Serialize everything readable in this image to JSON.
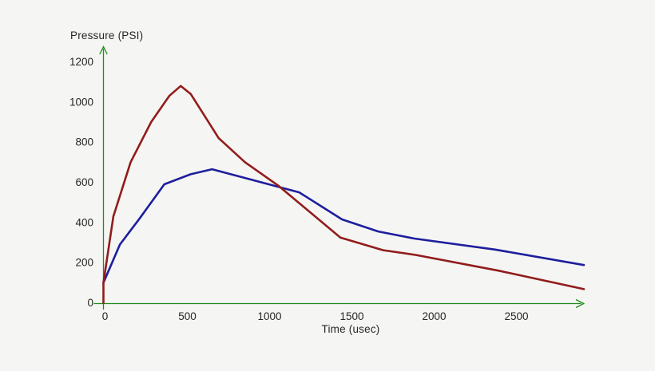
{
  "figure": {
    "background": "#f5f5f3",
    "axis_color": "#1f8b1f",
    "text_color": "#262626"
  },
  "chart_data": {
    "type": "line",
    "title": "",
    "ylabel": "Pressure (PSI)",
    "xlabel": "Time (usec)",
    "x_ticks": [
      0,
      500,
      1000,
      1500,
      2000,
      2500
    ],
    "y_ticks": [
      0,
      200,
      400,
      600,
      800,
      1000,
      1200
    ],
    "xlim": [
      0,
      2920
    ],
    "ylim": [
      0,
      1270
    ],
    "grid": false,
    "legend": "none",
    "series": [
      {
        "name": "blue-pressure-curve",
        "color": "#1e1e9e",
        "points": [
          [
            0,
            100
          ],
          [
            100,
            290
          ],
          [
            220,
            420
          ],
          [
            370,
            590
          ],
          [
            530,
            640
          ],
          [
            660,
            665
          ],
          [
            1190,
            550
          ],
          [
            1450,
            415
          ],
          [
            1670,
            355
          ],
          [
            1890,
            320
          ],
          [
            2380,
            265
          ],
          [
            2920,
            188
          ]
        ]
      },
      {
        "name": "red-pressure-curve",
        "color": "#911c1c",
        "points": [
          [
            0,
            0
          ],
          [
            0,
            100
          ],
          [
            60,
            430
          ],
          [
            165,
            700
          ],
          [
            290,
            900
          ],
          [
            400,
            1030
          ],
          [
            470,
            1080
          ],
          [
            530,
            1040
          ],
          [
            600,
            950
          ],
          [
            700,
            820
          ],
          [
            860,
            700
          ],
          [
            1060,
            585
          ],
          [
            1440,
            325
          ],
          [
            1700,
            262
          ],
          [
            1900,
            238
          ],
          [
            2400,
            160
          ],
          [
            2920,
            68
          ]
        ]
      }
    ]
  }
}
